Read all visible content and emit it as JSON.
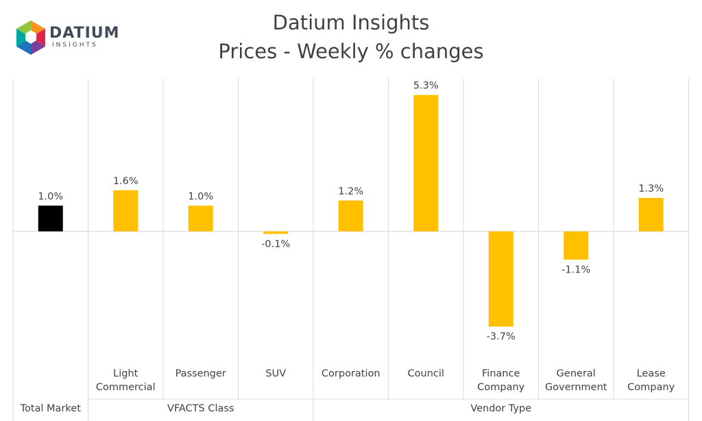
{
  "logo": {
    "word": "DATIUM",
    "sub": "INSIGHTS"
  },
  "title": [
    "Datium Insights",
    "Prices - Weekly % changes"
  ],
  "colors": {
    "highlight": "#000000",
    "bar": "#FFC000",
    "grid": "#D9D9D9",
    "text": "#404040"
  },
  "chart_data": {
    "type": "bar",
    "title": "Datium Insights Prices - Weekly % changes",
    "categories": [
      "",
      "Light Commercial",
      "Passenger",
      "SUV",
      "Corporation",
      "Council",
      "Finance Company",
      "General Government",
      "Lease Company"
    ],
    "category_lines": [
      [
        ""
      ],
      [
        "Light",
        "Commercial"
      ],
      [
        "Passenger"
      ],
      [
        "SUV"
      ],
      [
        "Corporation"
      ],
      [
        "Council"
      ],
      [
        "Finance",
        "Company"
      ],
      [
        "General",
        "Government"
      ],
      [
        "Lease",
        "Company"
      ]
    ],
    "groups": [
      {
        "name": "Total Market",
        "start": 0,
        "end": 0
      },
      {
        "name": "VFACTS Class",
        "start": 1,
        "end": 3
      },
      {
        "name": "Vendor Type",
        "start": 4,
        "end": 8
      }
    ],
    "values": [
      1.0,
      1.6,
      1.0,
      -0.1,
      1.2,
      5.3,
      -3.7,
      -1.1,
      1.3
    ],
    "labels": [
      "1.0%",
      "1.6%",
      "1.0%",
      "-0.1%",
      "1.2%",
      "5.3%",
      "-3.7%",
      "-1.1%",
      "1.3%"
    ],
    "highlight_index": 0,
    "ylim": [
      -5,
      6
    ],
    "grid": false,
    "legend": "none"
  }
}
